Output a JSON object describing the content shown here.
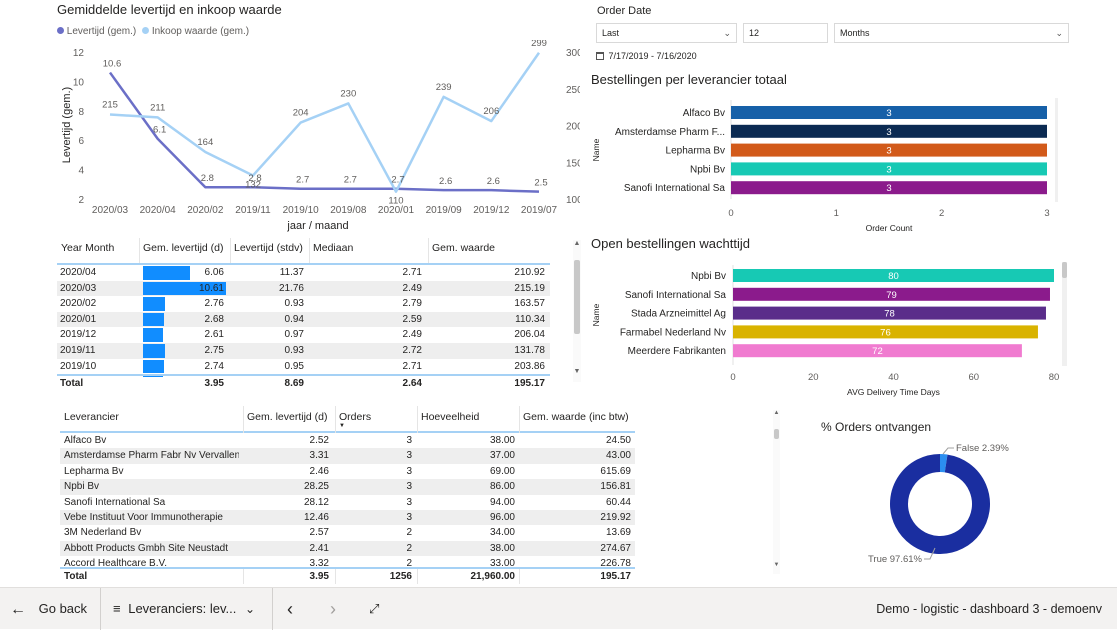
{
  "line_chart": {
    "title": "Gemiddelde levertijd en inkoop waarde",
    "chart_data": {
      "type": "line",
      "categories": [
        "2020/03",
        "2020/04",
        "2020/02",
        "2019/11",
        "2019/10",
        "2019/08",
        "2020/01",
        "2019/09",
        "2019/12",
        "2019/07"
      ],
      "series": [
        {
          "name": "Levertijd (gem.)",
          "axis": "left",
          "color": "#6b6fc7",
          "values": [
            10.6,
            6.1,
            2.8,
            2.8,
            2.7,
            2.7,
            2.7,
            2.6,
            2.6,
            2.5
          ]
        },
        {
          "name": "Inkoop waarde (gem.)",
          "axis": "right",
          "color": "#a5d1f5",
          "values": [
            215,
            211,
            164,
            132,
            204,
            230,
            110,
            239,
            206,
            299
          ]
        }
      ],
      "label_texts_left": [
        "10.6",
        "6.1",
        "2.8",
        "2.8",
        "2.7",
        "2.7",
        "2.7",
        "2.6",
        "2.6",
        "2.5"
      ],
      "label_texts_right": [
        "215",
        "211",
        "164",
        "132",
        "204",
        "230",
        "110",
        "239",
        "206",
        "299"
      ],
      "xlabel": "jaar / maand",
      "ylabel": "Levertijd (gem.)",
      "ylim_left": [
        2,
        12
      ],
      "ylim_right": [
        100,
        300
      ],
      "yticks_left": [
        "2",
        "4",
        "6",
        "8",
        "10",
        "12"
      ],
      "yticks_right": [
        "100",
        "150",
        "200",
        "250",
        "300"
      ],
      "legend": [
        "Levertijd (gem.)",
        "Inkoop waarde (gem.)"
      ]
    }
  },
  "order_date": {
    "title": "Order Date",
    "relative": "Last",
    "count": "12",
    "unit": "Months",
    "range_text": "7/17/2019 - 7/16/2020"
  },
  "bar_chart_1": {
    "title": "Bestellingen per leverancier totaal",
    "chart_data": {
      "type": "bar",
      "orientation": "horizontal",
      "categories": [
        "Alfaco Bv",
        "Amsterdamse Pharm F...",
        "Lepharma Bv",
        "Npbi Bv",
        "Sanofi International Sa"
      ],
      "values": [
        3,
        3,
        3,
        3,
        3
      ],
      "value_labels": [
        "3",
        "3",
        "3",
        "3",
        "3"
      ],
      "colors": [
        "#1660a8",
        "#0b2a52",
        "#d25a1a",
        "#17c9b4",
        "#8b1b8c"
      ],
      "xlabel": "Order Count",
      "ylabel": "Name",
      "xlim": [
        0,
        3
      ],
      "xticks": [
        "0",
        "1",
        "2",
        "3"
      ]
    }
  },
  "bar_chart_2": {
    "title": "Open bestellingen wachttijd",
    "chart_data": {
      "type": "bar",
      "orientation": "horizontal",
      "categories": [
        "Npbi Bv",
        "Sanofi International Sa",
        "Stada Arzneimittel Ag",
        "Farmabel Nederland Nv",
        "Meerdere Fabrikanten"
      ],
      "values": [
        80,
        79,
        78,
        76,
        72
      ],
      "value_labels": [
        "80",
        "79",
        "78",
        "76",
        "72"
      ],
      "colors": [
        "#17c9b4",
        "#8b1b8c",
        "#5a2d8a",
        "#d9b300",
        "#f07bd0"
      ],
      "xlabel": "AVG Delivery Time Days",
      "ylabel": "Name",
      "xlim": [
        0,
        80
      ],
      "xticks": [
        "0",
        "20",
        "40",
        "60",
        "80"
      ]
    }
  },
  "donut": {
    "title": "% Orders ontvangen",
    "chart_data": {
      "type": "pie",
      "variant": "donut",
      "categories": [
        "False",
        "True"
      ],
      "values": [
        2.39,
        97.61
      ],
      "colors": [
        "#2b8ef0",
        "#1a2ea0"
      ],
      "label_texts": [
        "False 2.39%",
        "True 97.61%"
      ]
    }
  },
  "table1": {
    "headers": [
      "Year Month",
      "Gem. levertijd (d)",
      "Levertijd (stdv)",
      "Mediaan",
      "Gem. waarde"
    ],
    "max_bar": 10.61,
    "rows": [
      {
        "ym": "2020/04",
        "gem": "6.06",
        "gem_val": 6.06,
        "stdv": "11.37",
        "med": "2.71",
        "waarde": "210.92"
      },
      {
        "ym": "2020/03",
        "gem": "10.61",
        "gem_val": 10.61,
        "stdv": "21.76",
        "med": "2.49",
        "waarde": "215.19"
      },
      {
        "ym": "2020/02",
        "gem": "2.76",
        "gem_val": 2.76,
        "stdv": "0.93",
        "med": "2.79",
        "waarde": "163.57"
      },
      {
        "ym": "2020/01",
        "gem": "2.68",
        "gem_val": 2.68,
        "stdv": "0.94",
        "med": "2.59",
        "waarde": "110.34"
      },
      {
        "ym": "2019/12",
        "gem": "2.61",
        "gem_val": 2.61,
        "stdv": "0.97",
        "med": "2.49",
        "waarde": "206.04"
      },
      {
        "ym": "2019/11",
        "gem": "2.75",
        "gem_val": 2.75,
        "stdv": "0.93",
        "med": "2.72",
        "waarde": "131.78"
      },
      {
        "ym": "2019/10",
        "gem": "2.74",
        "gem_val": 2.74,
        "stdv": "0.95",
        "med": "2.71",
        "waarde": "203.86"
      }
    ],
    "total": {
      "label": "Total",
      "gem": "3.95",
      "stdv": "8.69",
      "med": "2.64",
      "waarde": "195.17"
    }
  },
  "table2": {
    "headers": [
      "Leverancier",
      "Gem. levertijd (d)",
      "Orders",
      "Hoeveelheid",
      "Gem. waarde (inc btw)"
    ],
    "rows": [
      {
        "name": "Alfaco Bv",
        "gem": "2.52",
        "orders": "3",
        "qty": "38.00",
        "waarde": "24.50"
      },
      {
        "name": "Amsterdamse Pharm Fabr Nv Vervallen",
        "gem": "3.31",
        "orders": "3",
        "qty": "37.00",
        "waarde": "43.00"
      },
      {
        "name": "Lepharma Bv",
        "gem": "2.46",
        "orders": "3",
        "qty": "69.00",
        "waarde": "615.69"
      },
      {
        "name": "Npbi Bv",
        "gem": "28.25",
        "orders": "3",
        "qty": "86.00",
        "waarde": "156.81"
      },
      {
        "name": "Sanofi International Sa",
        "gem": "28.12",
        "orders": "3",
        "qty": "94.00",
        "waarde": "60.44"
      },
      {
        "name": "Vebe Instituut Voor Immunotherapie",
        "gem": "12.46",
        "orders": "3",
        "qty": "96.00",
        "waarde": "219.92"
      },
      {
        "name": "3M Nederland Bv",
        "gem": "2.57",
        "orders": "2",
        "qty": "34.00",
        "waarde": "13.69"
      },
      {
        "name": "Abbott Products Gmbh Site Neustadt",
        "gem": "2.41",
        "orders": "2",
        "qty": "38.00",
        "waarde": "274.67"
      },
      {
        "name": "Accord Healthcare B.V.",
        "gem": "3.32",
        "orders": "2",
        "qty": "33.00",
        "waarde": "226.78"
      }
    ],
    "total": {
      "label": "Total",
      "gem": "3.95",
      "orders": "1256",
      "qty": "21,960.00",
      "waarde": "195.17"
    }
  },
  "bottom_bar": {
    "back_label": "Go back",
    "page_label": "Leveranciers: lev...",
    "report_title": "Demo - logistic - dashboard 3 - demoenv"
  }
}
